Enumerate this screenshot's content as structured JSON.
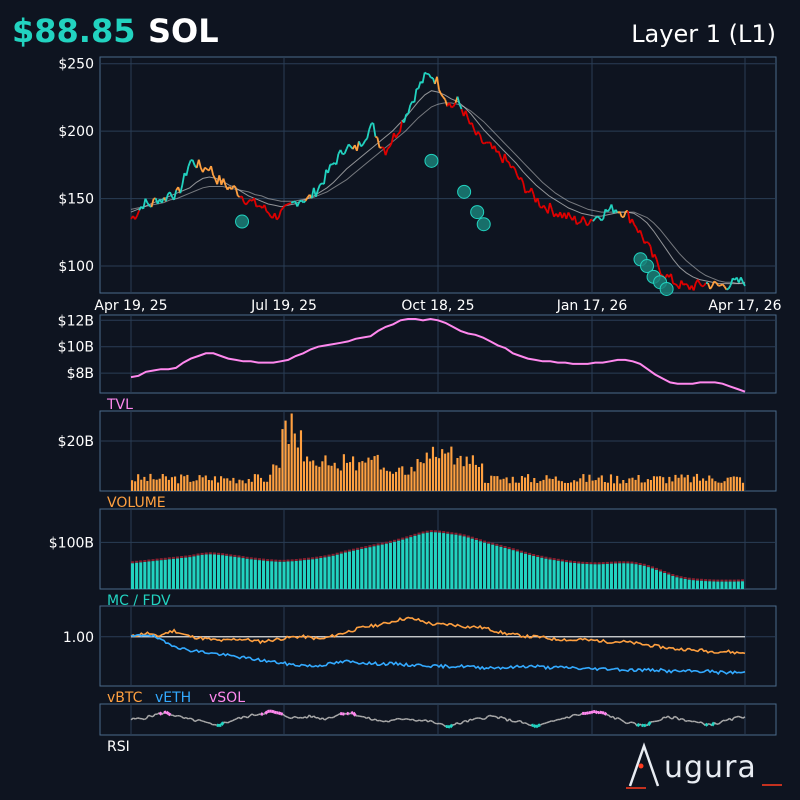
{
  "header": {
    "price": "$88.85",
    "ticker": "SOL",
    "category": "Layer 1 (L1)"
  },
  "colors": {
    "background": "#0e1420",
    "grid": "#2a3d55",
    "border": "#4a6a8a",
    "teal": "#22d3c0",
    "orange": "#ffa040",
    "red": "#e00000",
    "pink": "#ff88ee",
    "blue": "#33aaff",
    "gray": "#aaaaaa"
  },
  "brand": {
    "name": "ugura"
  },
  "chart_data": [
    {
      "type": "line",
      "name": "price-panel",
      "x_ticks": [
        "Apr 19, 25",
        "Jul 19, 25",
        "Oct 18, 25",
        "Jan 17, 26",
        "Apr 17, 26"
      ],
      "y_ticks": [
        "$250",
        "$200",
        "$150",
        "$100"
      ],
      "ylim": [
        80,
        255
      ],
      "grid": true,
      "series": [
        {
          "values": [
            135,
            140,
            147,
            145,
            150,
            149,
            155,
            152,
            162,
            178,
            176,
            172,
            174,
            165,
            162,
            158,
            157,
            152,
            148,
            146,
            144,
            140,
            137,
            139,
            142,
            147,
            150,
            149,
            154,
            160,
            168,
            176,
            182,
            190,
            185,
            190,
            198,
            204,
            192,
            186,
            194,
            202,
            212,
            222,
            232,
            240,
            242,
            236,
            226,
            218,
            222,
            214,
            204,
            196,
            191,
            188,
            183,
            180,
            175,
            168,
            160,
            155,
            150,
            145,
            143,
            140,
            138,
            136,
            134,
            133,
            134,
            136,
            138,
            141,
            143,
            141,
            138,
            133,
            124,
            116,
            106,
            98,
            92,
            89,
            86,
            84,
            85,
            86,
            87,
            86,
            85,
            86,
            87,
            88,
            89
          ]
        },
        {
          "values": [
            140,
            142,
            144,
            146,
            148,
            150,
            152,
            154,
            156,
            158,
            162,
            165,
            166,
            165,
            163,
            160,
            158,
            155,
            152,
            150,
            148,
            146,
            145,
            144,
            145,
            146,
            148,
            150,
            152,
            155,
            158,
            162,
            167,
            172,
            176,
            180,
            184,
            188,
            192,
            196,
            200,
            205,
            210,
            216,
            222,
            227,
            230,
            229,
            227,
            224,
            222,
            218,
            213,
            207,
            201,
            196,
            191,
            186,
            181,
            176,
            170,
            165,
            160,
            156,
            152,
            149,
            146,
            143,
            141,
            139,
            138,
            137,
            137,
            138,
            139,
            140,
            140,
            139,
            136,
            132,
            126,
            119,
            112,
            105,
            99,
            95,
            92,
            90,
            89,
            88,
            87,
            87,
            87,
            87,
            88
          ]
        },
        {
          "values": [
            142,
            143,
            144,
            145,
            146,
            147,
            149,
            150,
            152,
            154,
            156,
            158,
            159,
            159,
            159,
            158,
            157,
            156,
            155,
            153,
            152,
            150,
            149,
            148,
            148,
            148,
            149,
            150,
            151,
            153,
            155,
            158,
            161,
            164,
            168,
            172,
            176,
            180,
            184,
            188,
            192,
            196,
            200,
            205,
            210,
            214,
            218,
            220,
            221,
            221,
            220,
            218,
            215,
            211,
            207,
            202,
            197,
            192,
            187,
            182,
            177,
            172,
            167,
            162,
            158,
            154,
            151,
            148,
            146,
            144,
            142,
            141,
            140,
            140,
            140,
            140,
            140,
            140,
            138,
            136,
            132,
            127,
            121,
            115,
            109,
            104,
            100,
            96,
            93,
            91,
            89,
            88,
            88,
            87,
            87
          ]
        }
      ],
      "markers": [
        {
          "x": 17,
          "y": 133
        },
        {
          "x": 46,
          "y": 178
        },
        {
          "x": 51,
          "y": 155
        },
        {
          "x": 53,
          "y": 140
        },
        {
          "x": 54,
          "y": 131
        },
        {
          "x": 78,
          "y": 105
        },
        {
          "x": 79,
          "y": 100
        },
        {
          "x": 80,
          "y": 92
        },
        {
          "x": 81,
          "y": 88
        },
        {
          "x": 82,
          "y": 83
        }
      ]
    },
    {
      "type": "line",
      "name": "TVL",
      "label": "TVL",
      "y_ticks": [
        "$12B",
        "$10B",
        "$8B"
      ],
      "ylim": [
        6.5,
        12.4
      ],
      "values": [
        7.7,
        7.8,
        8.1,
        8.2,
        8.3,
        8.3,
        8.4,
        8.8,
        9.1,
        9.3,
        9.5,
        9.5,
        9.3,
        9.1,
        9.0,
        8.9,
        8.9,
        8.8,
        8.8,
        8.8,
        8.9,
        9.0,
        9.3,
        9.5,
        9.8,
        10.0,
        10.1,
        10.2,
        10.3,
        10.4,
        10.6,
        10.7,
        10.8,
        11.2,
        11.5,
        11.7,
        12.0,
        12.1,
        12.1,
        12.0,
        12.1,
        12.0,
        11.8,
        11.5,
        11.2,
        11.0,
        10.9,
        10.7,
        10.4,
        10.1,
        9.9,
        9.5,
        9.3,
        9.1,
        9.0,
        8.9,
        8.9,
        8.8,
        8.8,
        8.7,
        8.7,
        8.7,
        8.8,
        8.8,
        8.9,
        9.0,
        9.0,
        8.9,
        8.7,
        8.3,
        7.9,
        7.6,
        7.3,
        7.2,
        7.2,
        7.2,
        7.3,
        7.3,
        7.3,
        7.2,
        7.0,
        6.8,
        6.6
      ]
    },
    {
      "type": "bar",
      "name": "VOLUME",
      "label": "VOLUME",
      "y_ticks": [
        "$20B"
      ],
      "ylim": [
        0,
        32
      ]
    },
    {
      "type": "bar",
      "name": "MC / FDV",
      "label": "MC / FDV",
      "y_ticks": [
        "$100B"
      ],
      "ylim": [
        30,
        150
      ]
    },
    {
      "type": "line",
      "name": "relative-performance",
      "y_ticks": [
        "1.00"
      ],
      "ylim": [
        0.6,
        1.25
      ],
      "legend": [
        "vBTC",
        "vETH",
        "vSOL"
      ],
      "series": [
        {
          "name": "vBTC",
          "values": [
            1.0,
            1.02,
            1.03,
            1.0,
            1.03,
            1.05,
            1.02,
            1.0,
            0.99,
            0.98,
            0.97,
            0.97,
            0.98,
            0.98,
            0.97,
            0.96,
            0.97,
            0.98,
            0.99,
            1.0,
            1.0,
            0.99,
            0.98,
            1.0,
            1.02,
            1.04,
            1.06,
            1.08,
            1.09,
            1.1,
            1.12,
            1.14,
            1.15,
            1.14,
            1.12,
            1.1,
            1.1,
            1.1,
            1.09,
            1.08,
            1.08,
            1.07,
            1.05,
            1.03,
            1.02,
            1.01,
            1.0,
            1.0,
            0.99,
            0.98,
            0.98,
            0.97,
            0.98,
            0.97,
            0.97,
            0.96,
            0.96,
            0.96,
            0.95,
            0.94,
            0.93,
            0.92,
            0.91,
            0.9,
            0.9,
            0.89,
            0.89,
            0.88,
            0.88,
            0.88,
            0.87,
            0.87
          ]
        },
        {
          "name": "vETH",
          "values": [
            1.0,
            1.01,
            1.02,
            0.99,
            0.95,
            0.93,
            0.9,
            0.89,
            0.88,
            0.87,
            0.86,
            0.85,
            0.84,
            0.83,
            0.82,
            0.81,
            0.8,
            0.79,
            0.78,
            0.77,
            0.77,
            0.76,
            0.77,
            0.78,
            0.79,
            0.8,
            0.79,
            0.79,
            0.78,
            0.78,
            0.78,
            0.78,
            0.77,
            0.77,
            0.77,
            0.76,
            0.76,
            0.76,
            0.76,
            0.76,
            0.75,
            0.75,
            0.75,
            0.75,
            0.75,
            0.76,
            0.76,
            0.76,
            0.75,
            0.75,
            0.75,
            0.75,
            0.74,
            0.74,
            0.74,
            0.74,
            0.74,
            0.73,
            0.73,
            0.73,
            0.73,
            0.73,
            0.72,
            0.72,
            0.72,
            0.72,
            0.72,
            0.72,
            0.71,
            0.71,
            0.71,
            0.71
          ]
        }
      ],
      "reference_line": 1.0
    },
    {
      "type": "line",
      "name": "RSI",
      "label": "RSI",
      "ylim": [
        0,
        100
      ],
      "values": [
        50,
        52,
        55,
        62,
        68,
        72,
        66,
        58,
        52,
        48,
        45,
        38,
        30,
        35,
        42,
        50,
        55,
        60,
        66,
        70,
        75,
        72,
        64,
        58,
        55,
        57,
        60,
        56,
        52,
        58,
        66,
        72,
        70,
        63,
        55,
        50,
        46,
        44,
        45,
        52,
        54,
        50,
        47,
        45,
        40,
        32,
        28,
        34,
        40,
        46,
        50,
        55,
        60,
        58,
        52,
        47,
        44,
        38,
        30,
        28,
        35,
        42,
        50,
        56,
        62,
        66,
        70,
        73,
        72,
        65,
        56,
        48,
        40,
        34,
        30,
        36,
        45,
        52,
        57,
        55,
        50,
        46,
        40,
        36,
        34,
        38,
        44,
        50,
        56,
        60
      ]
    }
  ]
}
